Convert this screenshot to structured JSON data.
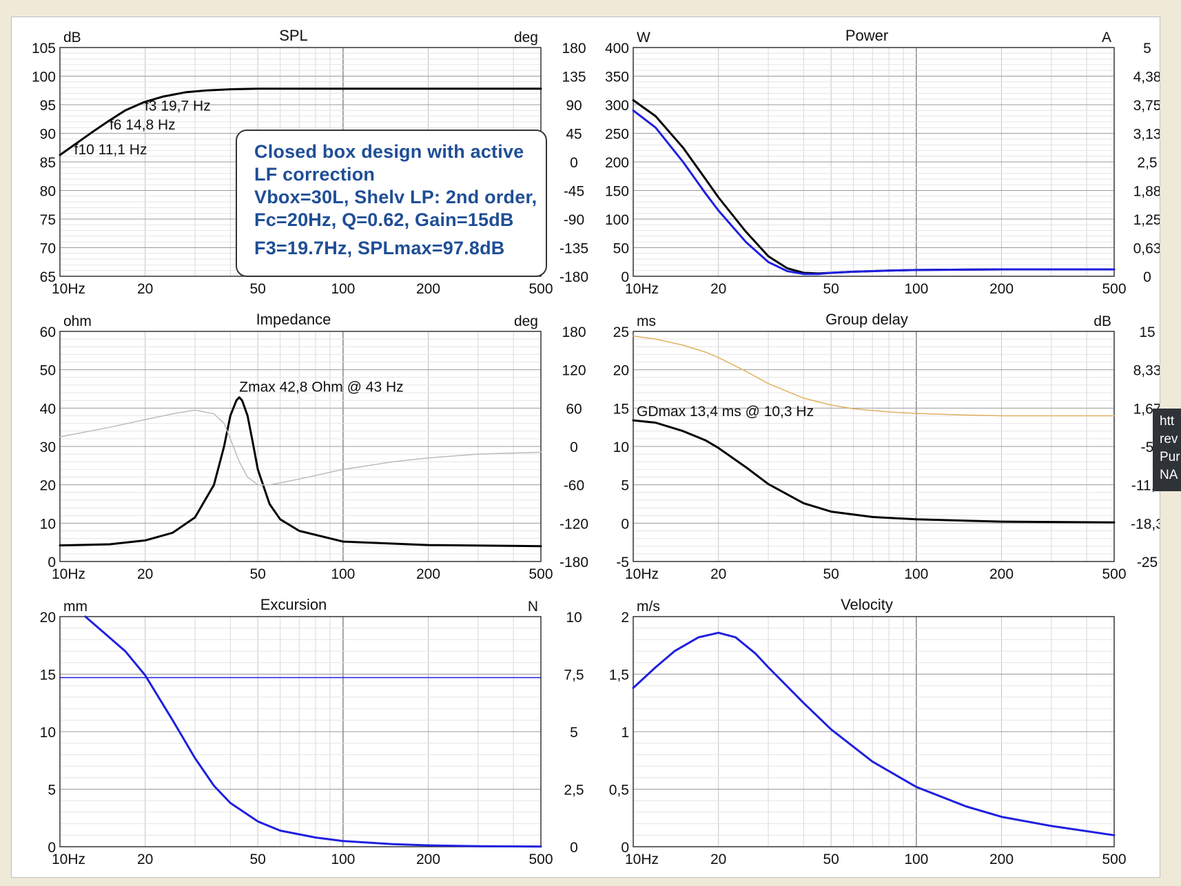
{
  "chart_data": [
    {
      "type": "line",
      "title": "SPL",
      "y_unit": "dB",
      "y2_unit": "deg",
      "x_ticks": [
        "10Hz",
        "20",
        "50",
        "100",
        "200",
        "500"
      ],
      "y_ticks": [
        "105",
        "100",
        "95",
        "90",
        "85",
        "80",
        "75",
        "70",
        "65"
      ],
      "y2_ticks": [
        "180",
        "135",
        "90",
        "45",
        "0",
        "-45",
        "-90",
        "-135",
        "-180"
      ],
      "ylim": [
        65,
        105
      ],
      "y2lim": [
        -180,
        180
      ],
      "series": [
        {
          "color": "#000000",
          "x": [
            10,
            11.1,
            13,
            14.8,
            17,
            19.7,
            23,
            28,
            33,
            40,
            50,
            100,
            200,
            500
          ],
          "y": [
            86.2,
            87.8,
            90.2,
            92.1,
            94.0,
            95.4,
            96.4,
            97.2,
            97.5,
            97.7,
            97.8,
            97.8,
            97.8,
            97.8
          ]
        }
      ],
      "annotations": [
        {
          "text": "f3 19,7 Hz",
          "x": 19.7,
          "y": 95.4
        },
        {
          "text": "f6 14,8 Hz",
          "x": 14.8,
          "y": 92.1
        },
        {
          "text": "f10 11,1 Hz",
          "x": 11.1,
          "y": 87.8
        }
      ]
    },
    {
      "type": "line",
      "title": "Power",
      "y_unit": "W",
      "y2_unit": "A",
      "x_ticks": [
        "10Hz",
        "20",
        "50",
        "100",
        "200",
        "500"
      ],
      "y_ticks": [
        "400",
        "350",
        "300",
        "250",
        "200",
        "150",
        "100",
        "50",
        "0"
      ],
      "y2_ticks": [
        "5",
        "4,38",
        "3,75",
        "3,13",
        "2,5",
        "1,88",
        "1,25",
        "0,63",
        "0"
      ],
      "ylim": [
        0,
        400
      ],
      "y2lim": [
        0,
        5
      ],
      "series": [
        {
          "color": "#000000",
          "x": [
            10,
            12,
            15,
            18,
            20,
            25,
            30,
            35,
            40,
            45,
            50,
            60,
            80,
            100,
            200,
            500
          ],
          "y": [
            308,
            280,
            225,
            170,
            138,
            78,
            35,
            14,
            6,
            5,
            6,
            8,
            10,
            11,
            12,
            12
          ]
        },
        {
          "color": "#1f1fe0",
          "x": [
            10,
            12,
            15,
            18,
            20,
            25,
            30,
            35,
            40,
            45,
            50,
            60,
            80,
            100,
            200,
            500
          ],
          "y": [
            290,
            260,
            200,
            145,
            115,
            60,
            25,
            9,
            4,
            4,
            6,
            8,
            10,
            11,
            12,
            12
          ]
        }
      ]
    },
    {
      "type": "line",
      "title": "Impedance",
      "y_unit": "ohm",
      "y2_unit": "deg",
      "x_ticks": [
        "10Hz",
        "20",
        "50",
        "100",
        "200",
        "500"
      ],
      "y_ticks": [
        "60",
        "50",
        "40",
        "30",
        "20",
        "10",
        "0"
      ],
      "y2_ticks": [
        "180",
        "120",
        "60",
        "0",
        "-60",
        "-120",
        "-180"
      ],
      "ylim": [
        0,
        60
      ],
      "y2lim": [
        -180,
        180
      ],
      "series": [
        {
          "color": "#000000",
          "x": [
            10,
            15,
            20,
            25,
            30,
            35,
            38,
            40,
            42,
            43,
            44,
            46,
            48,
            50,
            55,
            60,
            70,
            100,
            200,
            500
          ],
          "y": [
            4.2,
            4.5,
            5.5,
            7.5,
            11.5,
            20,
            30,
            38,
            42,
            42.8,
            42,
            38,
            31,
            24,
            15,
            11,
            8,
            5.2,
            4.3,
            4
          ],
          "width": 3
        },
        {
          "color": "#bbbbbb",
          "x": [
            10,
            15,
            20,
            25,
            30,
            35,
            38,
            40,
            43,
            46,
            50,
            55,
            60,
            70,
            100,
            150,
            200,
            300,
            500
          ],
          "y": [
            32.5,
            35,
            37,
            38.5,
            39.5,
            38.5,
            36,
            32,
            26,
            22,
            20,
            20,
            20.5,
            21.5,
            24,
            26,
            27,
            28,
            28.5
          ],
          "width": 1.5
        }
      ],
      "annotations": [
        {
          "text": "Zmax 42,8 Ohm @ 43 Hz",
          "x": 43,
          "y": 42.8
        }
      ]
    },
    {
      "type": "line",
      "title": "Group delay",
      "y_unit": "ms",
      "y2_unit": "dB",
      "x_ticks": [
        "10Hz",
        "20",
        "50",
        "100",
        "200",
        "500"
      ],
      "y_ticks": [
        "25",
        "20",
        "15",
        "10",
        "5",
        "0",
        "-5"
      ],
      "y2_ticks": [
        "15",
        "8,33",
        "1,67",
        "-5",
        "-11,6",
        "-18,3",
        "-25"
      ],
      "ylim": [
        -5,
        25
      ],
      "y2lim": [
        -25,
        15
      ],
      "series": [
        {
          "color": "#000000",
          "x": [
            10,
            12,
            15,
            18,
            20,
            25,
            30,
            40,
            50,
            70,
            100,
            200,
            500
          ],
          "y": [
            13.4,
            13.1,
            12.0,
            10.8,
            9.8,
            7.3,
            5.1,
            2.6,
            1.5,
            0.8,
            0.5,
            0.2,
            0.1
          ],
          "width": 3
        },
        {
          "color": "#e0b060",
          "x": [
            10,
            12,
            15,
            18,
            20,
            25,
            30,
            40,
            50,
            60,
            80,
            100,
            150,
            200,
            500
          ],
          "y": [
            24.4,
            24.0,
            23.2,
            22.3,
            21.6,
            19.8,
            18.2,
            16.3,
            15.4,
            14.9,
            14.5,
            14.3,
            14.1,
            14.0,
            14.0
          ],
          "width": 1.5
        }
      ],
      "annotations": [
        {
          "text": "GDmax 13,4 ms  @ 10,3 Hz",
          "x": 10.3,
          "y": 13.4
        }
      ]
    },
    {
      "type": "line",
      "title": "Excursion",
      "y_unit": "mm",
      "y2_unit": "N",
      "x_ticks": [
        "10Hz",
        "20",
        "50",
        "100",
        "200",
        "500"
      ],
      "y_ticks": [
        "20",
        "15",
        "10",
        "5",
        "0"
      ],
      "y2_ticks": [
        "10",
        "7,5",
        "5",
        "2,5",
        "0"
      ],
      "ylim": [
        0,
        20
      ],
      "y2lim": [
        0,
        10
      ],
      "series": [
        {
          "color": "#1f1fe0",
          "x": [
            12.3,
            14,
            17,
            20,
            25,
            30,
            35,
            40,
            50,
            60,
            80,
            100,
            150,
            200,
            300,
            500
          ],
          "y": [
            20,
            18.8,
            17,
            14.9,
            11,
            7.7,
            5.3,
            3.8,
            2.2,
            1.4,
            0.8,
            0.5,
            0.22,
            0.12,
            0.05,
            0.02
          ],
          "width": 3
        },
        {
          "color": "#1f1fe0",
          "x": [
            10,
            500
          ],
          "y": [
            14.7,
            14.7
          ],
          "width": 1.5
        }
      ]
    },
    {
      "type": "line",
      "title": "Velocity",
      "y_unit": "m/s",
      "x_ticks": [
        "10Hz",
        "20",
        "50",
        "100",
        "200",
        "500"
      ],
      "y_ticks": [
        "2",
        "1,5",
        "1",
        "0,5",
        "0"
      ],
      "ylim": [
        0,
        2
      ],
      "series": [
        {
          "color": "#1f1fe0",
          "x": [
            10,
            12,
            14,
            17,
            20,
            23,
            27,
            30,
            40,
            50,
            70,
            100,
            150,
            200,
            300,
            500
          ],
          "y": [
            1.38,
            1.56,
            1.7,
            1.82,
            1.86,
            1.82,
            1.68,
            1.56,
            1.25,
            1.02,
            0.74,
            0.52,
            0.35,
            0.26,
            0.18,
            0.1
          ],
          "width": 3
        }
      ]
    }
  ],
  "note": {
    "line1": "Closed box design with active",
    "line2": "LF correction",
    "line3": "Vbox=30L, Shelv LP: 2nd order,",
    "line4": "Fc=20Hz, Q=0.62, Gain=15dB",
    "line5": "F3=19.7Hz, SPLmax=97.8dB"
  },
  "side_tooltip": {
    "lines": [
      "htt",
      "rev",
      "Pur",
      "NA"
    ]
  }
}
